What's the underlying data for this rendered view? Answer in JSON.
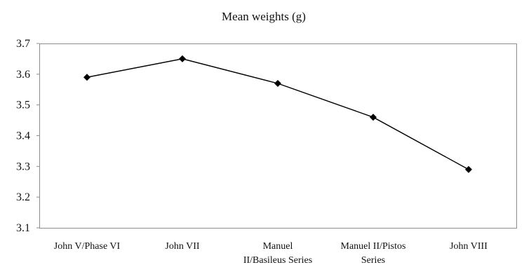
{
  "chart_data": {
    "type": "line",
    "title": "Mean weights (g)",
    "xlabel": "",
    "ylabel": "",
    "categories": [
      [
        "John V/Phase VI"
      ],
      [
        "John VII"
      ],
      [
        "Manuel",
        "II/Basileus Series"
      ],
      [
        "Manuel II/Pistos",
        "Series"
      ],
      [
        "John VIII"
      ]
    ],
    "series": [
      {
        "values": [
          3.59,
          3.65,
          3.57,
          3.46,
          3.29
        ],
        "color": "#000000",
        "marker": "diamond"
      }
    ],
    "ylim": [
      3.1,
      3.7
    ],
    "yticks": [
      "3.1",
      "3.2",
      "3.3",
      "3.4",
      "3.5",
      "3.6",
      "3.7"
    ],
    "grid": false,
    "legend": "none"
  }
}
